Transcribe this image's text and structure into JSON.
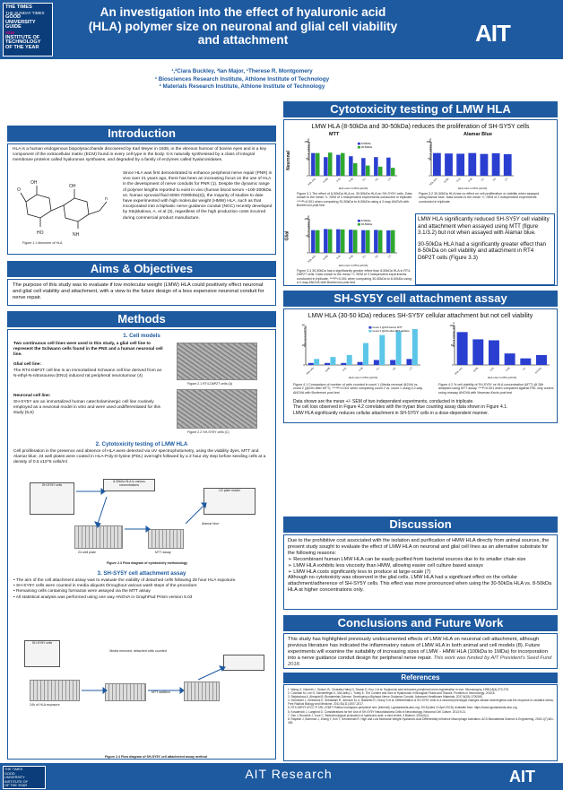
{
  "header": {
    "title": "An investigation into the effect of hyaluronic acid (HLA) polymer size on neuronal and glial cell viability and attachment",
    "logo_lines": [
      "THE TIMES",
      "THE SUNDAY TIMES",
      "GOOD",
      "UNIVERSITY",
      "GUIDE",
      "2018",
      "INSTITUTE OF",
      "TECHNOLOGY",
      "OF THE YEAR"
    ],
    "ait_logo": "AIT"
  },
  "authors": {
    "names": "¹,²Ciara Buckley, ²Ian Major, ¹Therese R. Montgomery",
    "aff1": "¹ Biosciences Research Institute, Athlone Institute of Technology",
    "aff2": "² Materials Research Institute, Athlone Institute of Technology"
  },
  "intro": {
    "heading": "Introduction",
    "p1": "HLA is a human endogenous biopolysaccharide discovered by Karl Meyer in 1938, in the vitreous humour of bovine eyes and is a key component of the extracellular matrix (ECM) found in every cell type in the body. It is naturally synthesised by a class of integral membrane proteins called hyaluronan synthases, and degraded by a family of enzymes called hyaluronidases.",
    "p2": "Since HLA was first demonstrated to enhance peripheral nerve repair (PNR) in vivo over 21 years ago, there has been an increasing focus on the use of HLA in the development of nerve conduits for PNR (1). Despite the dynamic range of polymer lengths reported to exist in vivo (human blood serum ~100-300kDa vs. human synovial fluid 6000-7000kDa(2)), the majority of studies to date have experimented with high molecular weight (HMW) HLA, such as that incorporated into a biphasic nerve guidance conduit (NGC) recently developed by Stejskalova, A. et al (3), regardless of the high production costs incurred during commercial product manufacture.",
    "fig1": "Figure 1.1 Monomer of HLA"
  },
  "aims": {
    "heading": "Aims & Objectives",
    "text": "The purpose of this study was to evaluate if low molecular weight (LMW) HLA could positively effect neuronal and glial cell viability and attachment, with a view to the future design of a less expensive neuronal conduit for nerve repair."
  },
  "methods": {
    "heading": "Methods",
    "s1": "1. Cell models",
    "s1_intro": "Two continuous cell lines were used in this study, a glial cell line to represent the Schwann cells found in the PNS and a human neuronal cell line.",
    "glial_h": "Glial cell line:",
    "glial": "The RT4-D6P2T cell line is an immortalized Schwann cell line derived from an N-ethyl-N-nitrosourea (ENU) induced rat peripheral neurotumour (4)",
    "neur_h": "Neuronal cell line:",
    "neur": "SH-SY5Y are an immortalized human catecholaminergic cell line routinely employed as a neuronal model in vitro and were used undifferentiated for this study (5,6)",
    "fig21": "Figure 2.1 RT4-D6P2T cells (A)",
    "fig22": "Figure 2.2 SH-SY5Y cells (C)",
    "s2": "2. Cytotoxicity testing of LMW HLA",
    "s2_text": "Cell proliferation in the presence and absence of HLA were detected via UV spectrophotometry, using the viability dyes, MTT and Alamar blue. 24 well plates were coated in HLA-Poly-D-lysine (PDL) overnight followed by a 2 hour dry step before seeding cells at a density of 0.5 x10^6 cells/ml",
    "fl_cells": "SH-SY5Y cells",
    "fl_hla": "8-30kDa HLA in various concentrations",
    "fl_plate": "24 well plate",
    "fl_uv": "UV plate reader",
    "fl_mtt": "MTT assay",
    "fl_ab": "Alamar blue",
    "fig23": "Figure 2.3 Flow diagram of cytotoxicity methodology",
    "s3": "3. SH-SY5Y cell attachment assay",
    "s3_b1": "The aim of the cell attachment assay was to evaluate the viability of detached cells following 28 hour HLA exposure.",
    "s3_b2": "SH-SY5Y cells were counted in media aliquots throughout various wash steps of the procedure",
    "s3_b3": "Remaining cells containing formazan were assayed via the MTT assay",
    "s3_b4": "All statistical analysis was performed using one way ANOVA in GraphPad Prism version 5.03",
    "fl2_cells": "SH-SY5Y cells",
    "fl2_plate": "24h of HLA exposure",
    "fl2_mtt": "MTT addition",
    "fl2_count": "Media removed, detached cells counted",
    "fig24": "Figure 2.4 Flow diagram of SH-SY5Y cell attachment assay method"
  },
  "cyto": {
    "heading": "Cytotoxicity testing of LMW HLA",
    "subtitle": "LMW HLA (8-50kDa and 30-50kDa) reduces the proliferation of SH-SY5Y cells",
    "mtt": "MTT",
    "ab": "Alamar Blue",
    "neuronal": "Neuronal",
    "glial": "Glial",
    "cap1": "Figure 3.1 The effect of 8-50kDa HLA vs. 30-50kDa HLA on SH-SY5Y cells. Data shown is the mean +/- SEM of 3 independent experiments conducted in triplicate. ****P<0.001 when comparing 30-50kDa to 8-50kDa using a 2-way ANOVA with Bonferroni post test",
    "cap2": "Figure 3.2 30-50kDa HLA has no effect on cell proliferation or viability when assayed using Alamar blue. Data shown is the mean +/- SEM of 2 independent experiments conducted in triplicate",
    "cap3": "Figure 3.3 30-50kDa has a significantly greater effect than 8-50kDa HLA in RT4-D6P2T cells. Data shown is the mean +/- SEM of 3 independent experiments conducted in triplicate. ****P<0.001 when comparing 30-50kDa to 8-50kDa using a 2-way ANOVA with Bonferroni post test",
    "hl1": "LMW HLA significantly reduced SH-SY5Y cell viability and attachment when assayed using MTT (figure 3.1/3.2) but not when assayed with Alamar blue.",
    "hl2": "30-50kDa HLA had a significantly greater effect than 8-50kDa on cell viability and attachment in RT4 D6P2T cells (Figure 3.3)"
  },
  "attach": {
    "heading": "SH-SY5Y cell attachment assay",
    "subtitle": "LMW HLA (30-50 kDa) reduces SH-SY5Y cellular attachment but not cell viability",
    "cap1": "Figure 4.1 Comparison of number of cells counted in count 1 (Media removal @24h) vs. count 2 (@24h after MTT). ****P<0.001 when comparing count 2 vs. count 1 using a 2-way ANOVA with Bonferroni post test",
    "cap2": "Figure 4.2 % cell viability of SH-SY5Y vs HLA concentration (MTT) @ 28h analysed using MTT assay. ***P<0.001 when compared against PDL only control using oneway ANOVA with Newman-Keuls post test",
    "note1": "Data shown are the mean +/- SEM of two independent experiments, conducted in triplicate.",
    "note2": "The cell loss observed in Figure 4.2 correlates with the trypan blue counting assay data shown in Figure 4.1.",
    "note3": "LMW HLA significantly reduces cellular attachment in SH-SY5Y cells in a dose-dependent manner."
  },
  "discussion": {
    "heading": "Discussion",
    "p1": "Due to the prohibitive cost associated with the isolation and purification of HMW HLA directly from animal sources, the present study sought to evaluate the effect of LMW HLA on neuronal and glial cell lines as an alternative substrate for the following reasons:",
    "b1": "Recombinant human LMW HLA can be easily purified from bacterial sources due to its smaller chain size",
    "b2": "LMW HLA exhibits less viscosity than HMW, allowing easier cell culture based assays",
    "b3": "LMW HLA costs significantly less to produce at large-scale (7)",
    "p2": "Although no cytotoxicity was observed in the glial cells, LMW HLA had a significant effect on the cellular attachment/adherence of SH-SY5Y cells. This effect was more pronounced when using the 30-50kDa HLA vs. 8-50kDa HLA at higher concentrations only."
  },
  "conclusions": {
    "heading": "Conclusions and Future Work",
    "text": "This study has highlighted previously undocumented effects of LMW HLA on neuronal cell attachment, although previous literature has indicated the inflammatory nature of LMW HLA in both animal and cell models (8). Future experiments will examine the suitability of increasing sizes of LMW - HMW HLA (100kDa to 1MDa) for incorporation into a nerve guidance conduit design for peripheral nerve repair.",
    "funding": "This work was funded by AIT President's Seed Fund 2018."
  },
  "references": {
    "heading": "References",
    "items": [
      "1. Wang, K. Nemeth, I. Seckel, B., Chakalis-Haley D, Swann D, Kuo J et al. Hyaluronic acid enhances peripheral nerve regeneration in vivo. Microsurgery. 1998;18(4):270-275.",
      "2. Cowman M, Lee H, Schwertfeger K, McCarthy J, Turley E. The Content and Size of Hyaluronan in Biological Fluids and Tissues. Frontiers in Immunology. 2015;6.",
      "3. Stejskalova A, Almquist B. Biomaterials Science. Developing a Biphasic Nerve Guidance Conduit. Advanced Healthcare Materials. 2017;6(15):1700065.",
      "4. Schneider L, Kleinhans E, Sebastiani R, Johnson M, A. Bassetto R, Ozsoy S et al. Differentiation of SH-SY5Y cells to a neuronal phenotype changes cellular bioenergetics and the response to oxidative stress. Free Radical Biology and Medicine. 2011;51(11):2007-2017.",
      "5. RT4-D6P2T ATCC ® CRL-2768™ Rattus norvegicus peripheral nerv [Internet]. Lgcstandards-atcc.org. 2018 [cited 10 April 2018]. Available from: https://www.lgcstandards-atcc.org",
      "6. Kovalevich J, Langford D. Considerations for the Use of SH-SY5Y Neuroblastoma Cells in Neurobiology. Neuronal Cell Culture. 2013:9-21.",
      "7. Sze J, Brownlie J, Love C. Biotechnological production of hyaluronic acid: a mini review. 3 Biotech. 2016;6(1).",
      "8. Rayahin J, Buhrman J, Zhang Y, Koh T, Gemeinhart R. High and Low Molecular Weight Hyaluronic Acid Differentially Influence Macrophage Activation. ACS Biomaterials Science & Engineering. 2015;1(7):481-493."
    ]
  },
  "footer": {
    "text": "AIT Research",
    "ait": "AIT",
    "logo_lines": [
      "THE TIMES",
      "THE SUNDAY TIMES",
      "GOOD",
      "UNIVERSITY",
      "GUIDE",
      "2018",
      "INSTITUTE OF",
      "TECHNOLOGY",
      "OF THE YEAR"
    ]
  },
  "chart_data": [
    {
      "type": "bar",
      "title": "MTT",
      "ylabel": "% Cell viability (PDL control)",
      "xlabel": "HLA conc in PDL (w/v%)",
      "ylim": [
        0,
        150
      ],
      "categories": [
        "PDL only",
        "0.005",
        "0.01",
        "0.05",
        "0.1",
        "0.5",
        "1.0"
      ],
      "series": [
        {
          "name": "8-50kDa",
          "color": "#2a3fd0",
          "values": [
            100,
            82,
            92,
            86,
            78,
            82,
            80
          ]
        },
        {
          "name": "30-50kDa",
          "color": "#2ea82e",
          "values": [
            100,
            102,
            100,
            55,
            45,
            40,
            35
          ]
        }
      ]
    },
    {
      "type": "bar",
      "title": "Alamar Blue",
      "ylabel": "% Cell viability (PDL control)",
      "xlabel": "HLA conc in PDL (w/v%)",
      "ylim": [
        0,
        150
      ],
      "categories": [
        "PDL only",
        "0.005",
        "0.01",
        "0.05",
        "0.1",
        "0.5",
        "1.0"
      ],
      "series": [
        {
          "name": "30-50kDa",
          "color": "#2a3fd0",
          "values": [
            100,
            98,
            97,
            100,
            96,
            99,
            95
          ]
        }
      ]
    },
    {
      "type": "bar",
      "ylabel": "% Cell viability (PDL control)",
      "xlabel": "HLA conc in PDL (w/v%)",
      "ylim": [
        0,
        150
      ],
      "categories": [
        "PDL only",
        "0.005",
        "0.01",
        "0.05",
        "0.1",
        "0.5",
        "1.0"
      ],
      "series": [
        {
          "name": "8-50kDa",
          "color": "#2a3fd0",
          "values": [
            100,
            105,
            104,
            102,
            100,
            101,
            99
          ]
        },
        {
          "name": "30-50kDa",
          "color": "#2ea82e",
          "values": [
            100,
            104,
            103,
            101,
            100,
            100,
            100
          ]
        }
      ]
    },
    {
      "type": "bar",
      "ylabel": "Cell count (x10^5)",
      "xlabel": "HLA conc in PDL (w/v%)",
      "categories": [
        "PDL only",
        "0.005",
        "0.01",
        "0.05",
        "0.1",
        "0.5",
        "1.0"
      ],
      "series": [
        {
          "name": "Count 1 @24h before MTT",
          "color": "#2a3fd0",
          "values": [
            2,
            2,
            2,
            3,
            5,
            5,
            6
          ]
        },
        {
          "name": "Count 2 @24h after MTT addition",
          "color": "#5cc6e8",
          "values": [
            6,
            8,
            10,
            22,
            30,
            34,
            36
          ]
        }
      ]
    },
    {
      "type": "bar",
      "ylabel": "% Cell viability (PDL control)",
      "xlabel": "HLA conc in PDL (w/v%)",
      "ylim": [
        0,
        120
      ],
      "categories": [
        "PDL only",
        "0.005",
        "0.01",
        "0.05",
        "0.1",
        "0.5 kDa"
      ],
      "series": [
        {
          "name": "30-50kDa",
          "color": "#2a3fd0",
          "values": [
            100,
            78,
            75,
            35,
            20,
            30
          ]
        }
      ]
    }
  ]
}
